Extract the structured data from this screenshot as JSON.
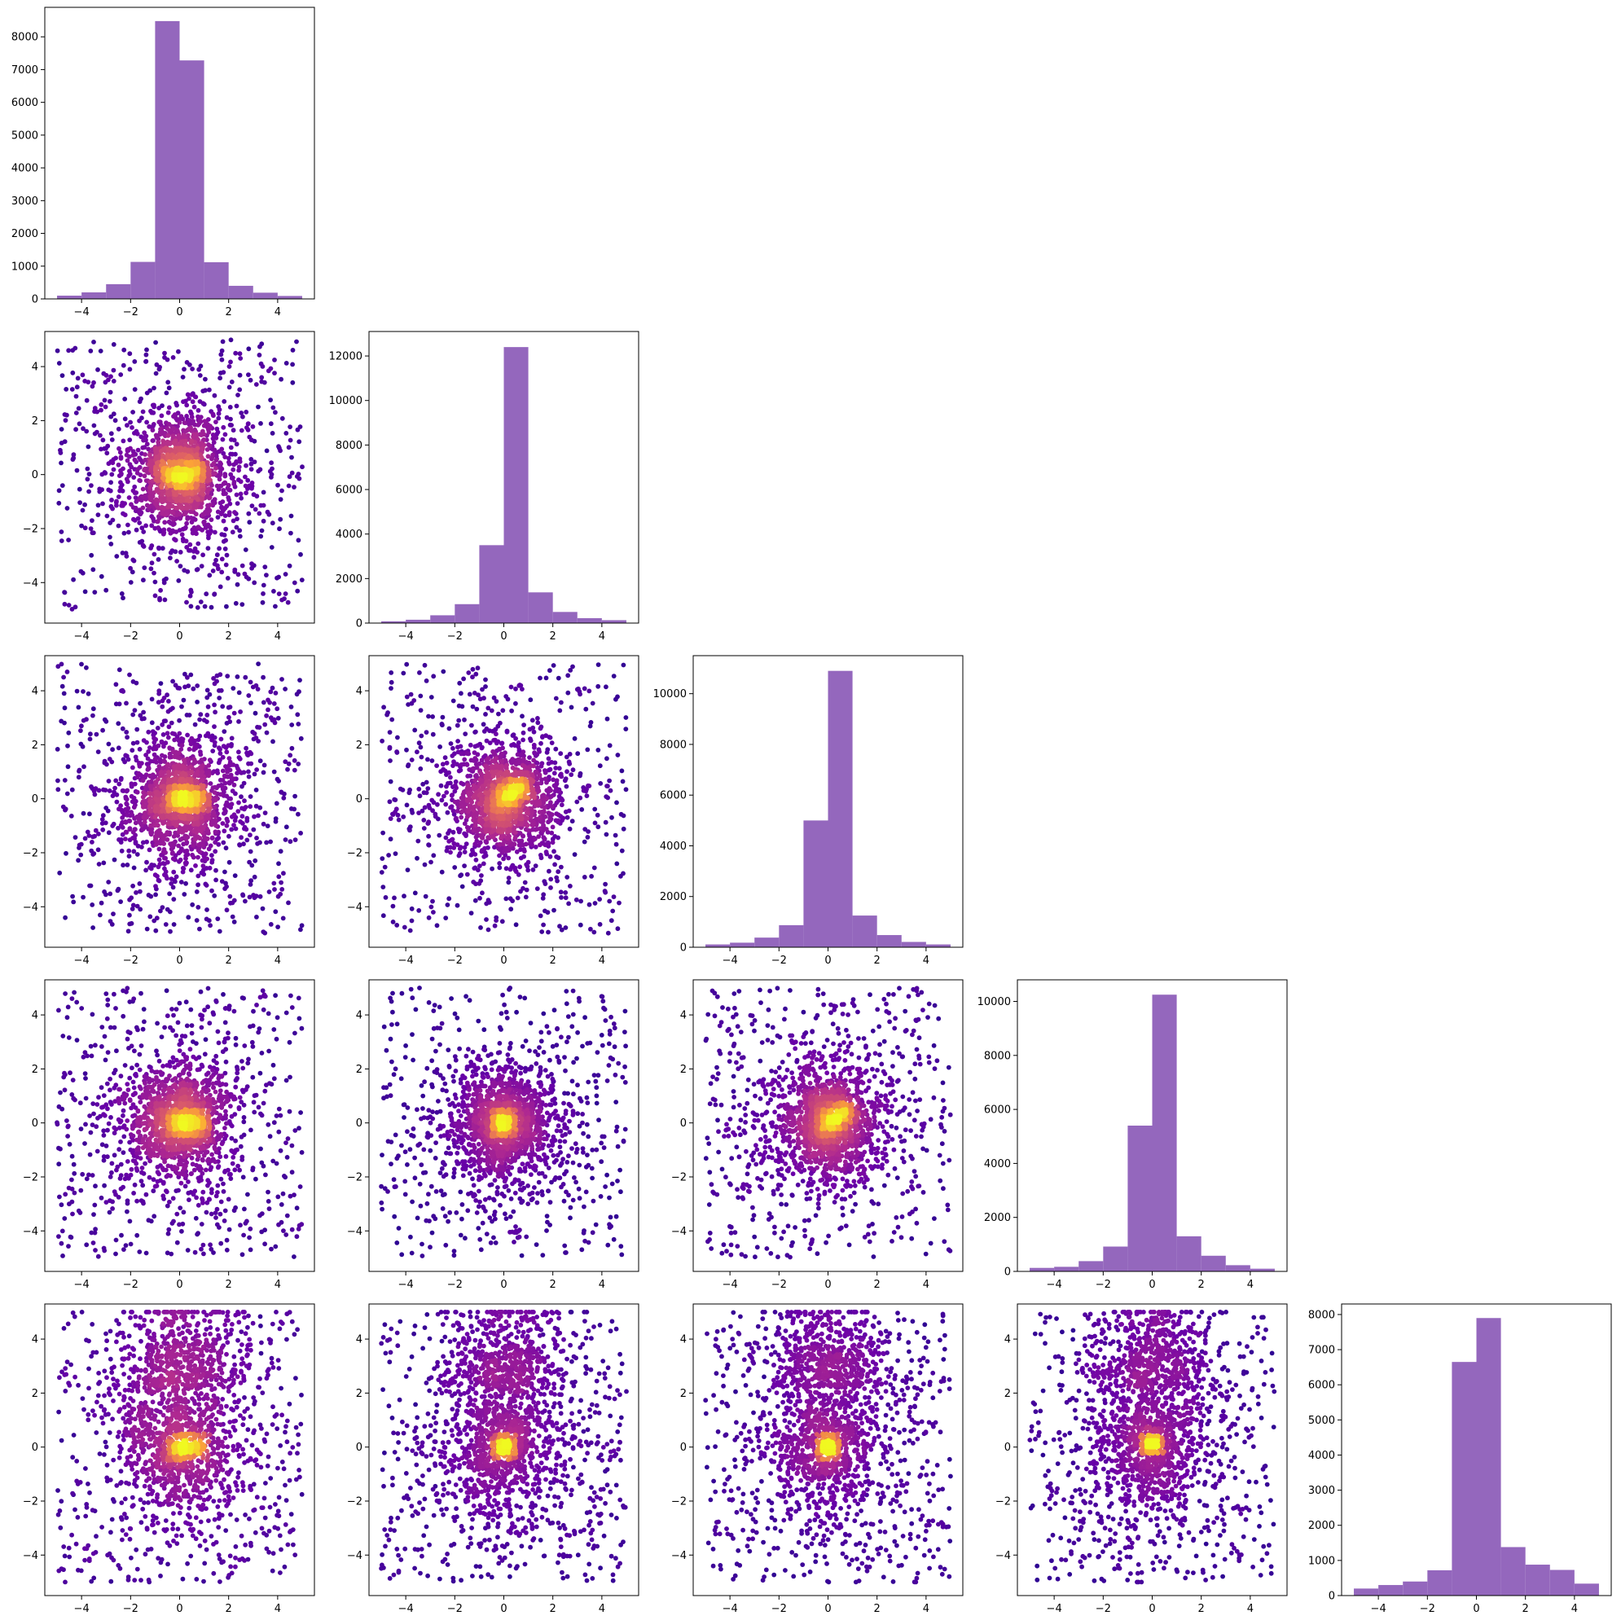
{
  "figure": {
    "grid": "5x5 lower-triangular corner plot",
    "diagonal": "histograms",
    "off_diagonal": "scatter plots colored by point density",
    "hist_color": "#9467bd",
    "density_colormap": [
      "#0d0887",
      "#6a00a8",
      "#b12a90",
      "#e16462",
      "#fca636",
      "#f0f921"
    ]
  },
  "chart_data": [
    {
      "type": "bar",
      "panel": "0-0",
      "row": 0,
      "col": 0,
      "bin_edges": [
        -5,
        -4,
        -3,
        -2,
        -1,
        0,
        1,
        2,
        3,
        4,
        5
      ],
      "values": [
        100,
        200,
        450,
        1130,
        8480,
        7280,
        1120,
        400,
        190,
        90
      ],
      "xlim": [
        -5.5,
        5.5
      ],
      "ylim": [
        0,
        8900
      ],
      "xticks": [
        -4,
        -2,
        0,
        2,
        4
      ],
      "yticks": [
        0,
        1000,
        2000,
        3000,
        4000,
        5000,
        6000,
        7000,
        8000
      ]
    },
    {
      "type": "bar",
      "panel": "1-1",
      "row": 1,
      "col": 1,
      "bin_edges": [
        -5,
        -4,
        -3,
        -2,
        -1,
        0,
        1,
        2,
        3,
        4,
        5
      ],
      "values": [
        80,
        150,
        350,
        850,
        3500,
        12400,
        1380,
        500,
        220,
        130
      ],
      "xlim": [
        -5.5,
        5.5
      ],
      "ylim": [
        0,
        13100
      ],
      "xticks": [
        -4,
        -2,
        0,
        2,
        4
      ],
      "yticks": [
        0,
        2000,
        4000,
        6000,
        8000,
        10000,
        12000
      ]
    },
    {
      "type": "bar",
      "panel": "2-2",
      "row": 2,
      "col": 2,
      "bin_edges": [
        -5,
        -4,
        -3,
        -2,
        -1,
        0,
        1,
        2,
        3,
        4,
        5
      ],
      "values": [
        110,
        180,
        380,
        870,
        5000,
        10900,
        1250,
        480,
        210,
        110
      ],
      "xlim": [
        -5.5,
        5.5
      ],
      "ylim": [
        0,
        11500
      ],
      "xticks": [
        -4,
        -2,
        0,
        2,
        4
      ],
      "yticks": [
        0,
        2000,
        4000,
        6000,
        8000,
        10000
      ]
    },
    {
      "type": "bar",
      "panel": "3-3",
      "row": 3,
      "col": 3,
      "bin_edges": [
        -5,
        -4,
        -3,
        -2,
        -1,
        0,
        1,
        2,
        3,
        4,
        5
      ],
      "values": [
        130,
        170,
        380,
        920,
        5400,
        10250,
        1300,
        580,
        230,
        100
      ],
      "xlim": [
        -5.5,
        5.5
      ],
      "ylim": [
        0,
        10800
      ],
      "xticks": [
        -4,
        -2,
        0,
        2,
        4
      ],
      "yticks": [
        0,
        2000,
        4000,
        6000,
        8000,
        10000
      ]
    },
    {
      "type": "bar",
      "panel": "4-4",
      "row": 4,
      "col": 4,
      "bin_edges": [
        -5,
        -4,
        -3,
        -2,
        -1,
        0,
        1,
        2,
        3,
        4,
        5
      ],
      "values": [
        200,
        300,
        400,
        720,
        6650,
        7900,
        1380,
        880,
        730,
        340
      ],
      "xlim": [
        -5.5,
        5.5
      ],
      "ylim": [
        0,
        8300
      ],
      "xticks": [
        -4,
        -2,
        0,
        2,
        4
      ],
      "yticks": [
        0,
        1000,
        2000,
        3000,
        4000,
        5000,
        6000,
        7000,
        8000
      ]
    },
    {
      "type": "scatter",
      "panel": "1-0",
      "row": 1,
      "col": 0,
      "core_shape": "crescent",
      "xlim": [
        -5.5,
        5.5
      ],
      "ylim": [
        -5.5,
        5.3
      ],
      "xticks": [
        -4,
        -2,
        0,
        2,
        4
      ],
      "yticks": [
        -4,
        -2,
        0,
        2,
        4
      ]
    },
    {
      "type": "scatter",
      "panel": "2-0",
      "row": 2,
      "col": 0,
      "core_shape": "horizontal",
      "xlim": [
        -5.5,
        5.5
      ],
      "ylim": [
        -5.5,
        5.3
      ],
      "xticks": [
        -4,
        -2,
        0,
        2,
        4
      ],
      "yticks": [
        -4,
        -2,
        0,
        2,
        4
      ]
    },
    {
      "type": "scatter",
      "panel": "2-1",
      "row": 2,
      "col": 1,
      "core_shape": "diagonal",
      "xlim": [
        -5.5,
        5.5
      ],
      "ylim": [
        -5.5,
        5.3
      ],
      "xticks": [
        -4,
        -2,
        0,
        2,
        4
      ],
      "yticks": [
        -4,
        -2,
        0,
        2,
        4
      ]
    },
    {
      "type": "scatter",
      "panel": "3-0",
      "row": 3,
      "col": 0,
      "core_shape": "horizontal",
      "xlim": [
        -5.5,
        5.5
      ],
      "ylim": [
        -5.5,
        5.3
      ],
      "xticks": [
        -4,
        -2,
        0,
        2,
        4
      ],
      "yticks": [
        -4,
        -2,
        0,
        2,
        4
      ]
    },
    {
      "type": "scatter",
      "panel": "3-1",
      "row": 3,
      "col": 1,
      "core_shape": "dot",
      "xlim": [
        -5.5,
        5.5
      ],
      "ylim": [
        -5.5,
        5.3
      ],
      "xticks": [
        -4,
        -2,
        0,
        2,
        4
      ],
      "yticks": [
        -4,
        -2,
        0,
        2,
        4
      ]
    },
    {
      "type": "scatter",
      "panel": "3-2",
      "row": 3,
      "col": 2,
      "core_shape": "diagonal",
      "xlim": [
        -5.5,
        5.5
      ],
      "ylim": [
        -5.5,
        5.3
      ],
      "xticks": [
        -4,
        -2,
        0,
        2,
        4
      ],
      "yticks": [
        -4,
        -2,
        0,
        2,
        4
      ]
    },
    {
      "type": "scatter",
      "panel": "4-0",
      "row": 4,
      "col": 0,
      "core_shape": "horizontal-tall",
      "xlim": [
        -5.5,
        5.5
      ],
      "ylim": [
        -5.5,
        5.3
      ],
      "xticks": [
        -4,
        -2,
        0,
        2,
        4
      ],
      "yticks": [
        -4,
        -2,
        0,
        2,
        4
      ]
    },
    {
      "type": "scatter",
      "panel": "4-1",
      "row": 4,
      "col": 1,
      "core_shape": "dot-tall",
      "xlim": [
        -5.5,
        5.5
      ],
      "ylim": [
        -5.5,
        5.3
      ],
      "xticks": [
        -4,
        -2,
        0,
        2,
        4
      ],
      "yticks": [
        -4,
        -2,
        0,
        2,
        4
      ]
    },
    {
      "type": "scatter",
      "panel": "4-2",
      "row": 4,
      "col": 2,
      "core_shape": "dot-tall",
      "xlim": [
        -5.5,
        5.5
      ],
      "ylim": [
        -5.5,
        5.3
      ],
      "xticks": [
        -4,
        -2,
        0,
        2,
        4
      ],
      "yticks": [
        -4,
        -2,
        0,
        2,
        4
      ]
    },
    {
      "type": "scatter",
      "panel": "4-3",
      "row": 4,
      "col": 3,
      "core_shape": "vshape-tall",
      "xlim": [
        -5.5,
        5.5
      ],
      "ylim": [
        -5.5,
        5.3
      ],
      "xticks": [
        -4,
        -2,
        0,
        2,
        4
      ],
      "yticks": [
        -4,
        -2,
        0,
        2,
        4
      ]
    }
  ]
}
